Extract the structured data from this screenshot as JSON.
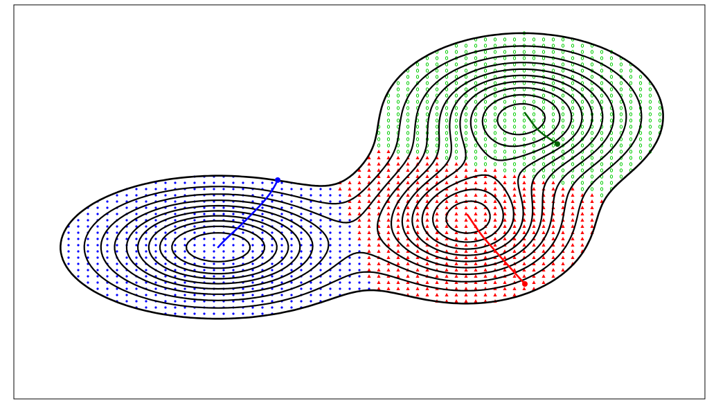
{
  "colors": {
    "background": "#ffffff",
    "frame": "#000000",
    "contour": "#000000",
    "blue_points": "#0000ff",
    "red_points": "#ff0000",
    "green_points": "#00cc00",
    "blue_path": "#0000ff",
    "red_path": "#ff0000",
    "green_path": "#006400"
  },
  "regions": [
    {
      "name": "left-basin",
      "color": "blue",
      "marker": "dot"
    },
    {
      "name": "lower-right-basin",
      "color": "red",
      "marker": "triangle"
    },
    {
      "name": "upper-right-basin",
      "color": "green",
      "marker": "circle"
    }
  ],
  "paths": [
    {
      "name": "blue-descent-path",
      "color": "blue"
    },
    {
      "name": "red-descent-path",
      "color": "red"
    },
    {
      "name": "green-descent-path",
      "color": "green"
    }
  ],
  "contour_levels": 10,
  "legend": "none"
}
